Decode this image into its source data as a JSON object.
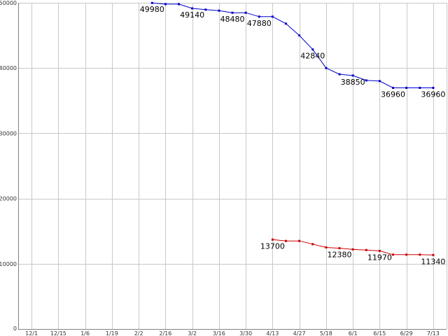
{
  "chart_data": {
    "type": "line",
    "title": "",
    "xlabel": "",
    "ylabel": "",
    "grid": true,
    "ylim": [
      0,
      50000
    ],
    "yticks": [
      0,
      10000,
      20000,
      30000,
      40000,
      50000
    ],
    "ytick_labels": [
      "0",
      "10000",
      "20000",
      "30000",
      "40000",
      "50000"
    ],
    "x_categories": [
      "12/1",
      "12/15",
      "1/6",
      "1/19",
      "2/2",
      "2/16",
      "3/2",
      "3/16",
      "3/30",
      "4/13",
      "4/27",
      "5/18",
      "6/1",
      "6/15",
      "6/29",
      "7/13"
    ],
    "series": [
      {
        "color": "#0000cc",
        "points": [
          {
            "x": 4.5,
            "y": 49980,
            "label": "49980"
          },
          {
            "x": 5.0,
            "y": 49800
          },
          {
            "x": 5.5,
            "y": 49800
          },
          {
            "x": 6.0,
            "y": 49140,
            "label": "49140"
          },
          {
            "x": 6.5,
            "y": 48950
          },
          {
            "x": 7.0,
            "y": 48800
          },
          {
            "x": 7.5,
            "y": 48480,
            "label": "48480"
          },
          {
            "x": 8.0,
            "y": 48480
          },
          {
            "x": 8.5,
            "y": 47880,
            "label": "47880"
          },
          {
            "x": 9.0,
            "y": 47880
          },
          {
            "x": 9.5,
            "y": 46800
          },
          {
            "x": 10.0,
            "y": 45000
          },
          {
            "x": 10.5,
            "y": 42840,
            "label": "42840"
          },
          {
            "x": 11.0,
            "y": 40000
          },
          {
            "x": 11.5,
            "y": 39050
          },
          {
            "x": 12.0,
            "y": 38850,
            "label": "38850"
          },
          {
            "x": 12.5,
            "y": 38100
          },
          {
            "x": 13.0,
            "y": 38000
          },
          {
            "x": 13.5,
            "y": 36960,
            "label": "36960"
          },
          {
            "x": 14.0,
            "y": 36960
          },
          {
            "x": 14.5,
            "y": 36960
          },
          {
            "x": 15.0,
            "y": 36960,
            "label": "36960"
          }
        ]
      },
      {
        "color": "#cc0000",
        "points": [
          {
            "x": 9.0,
            "y": 13700,
            "label": "13700"
          },
          {
            "x": 9.5,
            "y": 13500
          },
          {
            "x": 10.0,
            "y": 13500
          },
          {
            "x": 10.5,
            "y": 13000
          },
          {
            "x": 11.0,
            "y": 12500
          },
          {
            "x": 11.5,
            "y": 12380,
            "label": "12380"
          },
          {
            "x": 12.0,
            "y": 12200
          },
          {
            "x": 12.5,
            "y": 12100
          },
          {
            "x": 13.0,
            "y": 11970,
            "label": "11970"
          },
          {
            "x": 13.5,
            "y": 11400
          },
          {
            "x": 14.0,
            "y": 11400
          },
          {
            "x": 14.5,
            "y": 11400
          },
          {
            "x": 15.0,
            "y": 11340,
            "label": "11340"
          }
        ]
      }
    ]
  }
}
